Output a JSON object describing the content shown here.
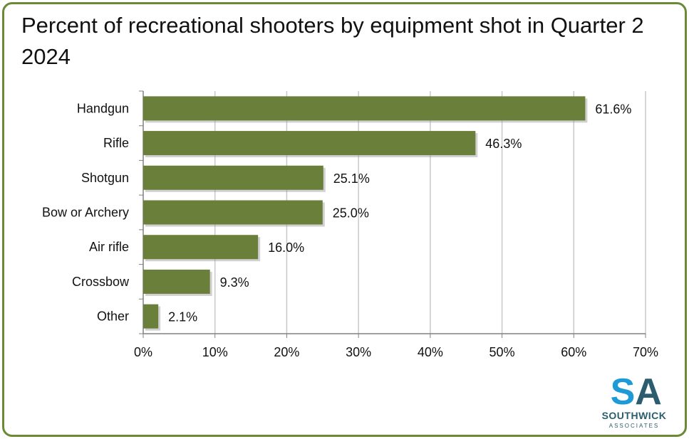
{
  "title": "Percent of recreational shooters by equipment shot in Quarter 2 2024",
  "chart_data": {
    "type": "bar",
    "orientation": "horizontal",
    "title": "Percent of recreational shooters by equipment shot in Quarter 2 2024",
    "categories": [
      "Handgun",
      "Rifle",
      "Shotgun",
      "Bow or Archery",
      "Air rifle",
      "Crossbow",
      "Other"
    ],
    "values": [
      61.6,
      46.3,
      25.1,
      25.0,
      16.0,
      9.3,
      2.1
    ],
    "data_labels": [
      "61.6%",
      "46.3%",
      "25.1%",
      "25.0%",
      "16.0%",
      "9.3%",
      "2.1%"
    ],
    "xlim": [
      0,
      70
    ],
    "x_ticks": [
      0,
      10,
      20,
      30,
      40,
      50,
      60,
      70
    ],
    "x_tick_labels": [
      "0%",
      "10%",
      "20%",
      "30%",
      "40%",
      "50%",
      "60%",
      "70%"
    ],
    "grid": true,
    "bar_color": "#6a7f3a",
    "grid_color": "#c8c8c8"
  },
  "logo": {
    "monogram": "SA",
    "name": "SOUTHWICK",
    "subname": "ASSOCIATES",
    "colors": {
      "s": "#1e9ad6",
      "a": "#2b5d6e"
    }
  },
  "frame_color": "#6a8a36"
}
